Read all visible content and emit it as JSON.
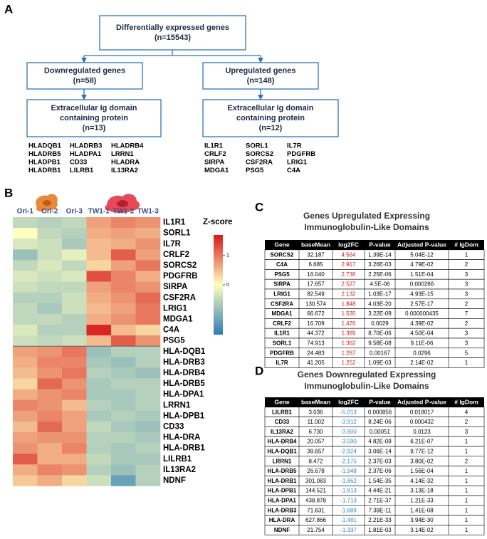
{
  "panel_a": {
    "label": "A",
    "boxes": [
      {
        "lines": [
          "Differentially expressed genes",
          "(n=15543)"
        ]
      },
      {
        "lines": [
          "Downregulated genes",
          "(n=58)"
        ]
      },
      {
        "lines": [
          "Upregulated genes",
          "(n=148)"
        ]
      },
      {
        "lines": [
          "Extracellular Ig domain",
          "containing protein",
          "(n=13)"
        ]
      },
      {
        "lines": [
          "Extracellular Ig domain",
          "containing protein",
          "(n=12)"
        ]
      }
    ],
    "down_genes": [
      [
        "HLADQB1",
        "HLADRB3",
        "HLADRB4"
      ],
      [
        "HLADRB5",
        "HLADPA1",
        "LRRN1"
      ],
      [
        "HLADPB1",
        "CD33",
        "HLADRA"
      ],
      [
        "HLADRB1",
        "LILRB1",
        "IL13RA2"
      ]
    ],
    "up_genes": [
      [
        "IL1R1",
        "SORL1",
        "IL7R"
      ],
      [
        "CRLF2",
        "SORCS2",
        "PDGFRB"
      ],
      [
        "SIRPA",
        "CSF2RA",
        "LRIG1"
      ],
      [
        "MDGA1",
        "PSG5",
        "C4A"
      ]
    ]
  },
  "panel_b": {
    "label": "B",
    "columns": [
      "Ori-1",
      "Ori-2",
      "Ori-3",
      "TW1-1",
      "TW1-2",
      "TW1-3"
    ],
    "rows": [
      "IL1R1",
      "SORL1",
      "IL7R",
      "CRLF2",
      "SORCS2",
      "PDGFRB",
      "SIRPA",
      "CSF2RA",
      "LRIG1",
      "MDGA1",
      "C4A",
      "PSG5",
      "HLA-DQB1",
      "HLA-DRB3",
      "HLA-DRB4",
      "HLA-DRB5",
      "HLA-DPA1",
      "LRRN1",
      "HLA-DPB1",
      "CD33",
      "HLA-DRA",
      "HLA-DRB1",
      "LILRB1",
      "IL13RA2",
      "NDNF"
    ],
    "values": [
      [
        -0.5,
        -0.6,
        -0.5,
        0.7,
        0.9,
        0.8
      ],
      [
        0.0,
        -0.5,
        -0.6,
        0.6,
        0.7,
        0.6
      ],
      [
        -0.3,
        -0.4,
        -0.7,
        0.5,
        0.6,
        0.8
      ],
      [
        -0.8,
        -0.4,
        -0.2,
        0.5,
        1.2,
        0.7
      ],
      [
        -0.5,
        -0.3,
        -0.5,
        0.3,
        0.7,
        1.0
      ],
      [
        -0.3,
        -0.4,
        -0.3,
        1.3,
        0.9,
        0.6
      ],
      [
        -0.4,
        -0.5,
        -0.5,
        0.7,
        0.9,
        0.8
      ],
      [
        -0.6,
        -0.6,
        -0.4,
        0.6,
        0.8,
        1.1
      ],
      [
        -0.5,
        -0.7,
        -0.4,
        0.5,
        0.7,
        1.0
      ],
      [
        -0.5,
        -0.5,
        -0.6,
        0.6,
        0.8,
        1.0
      ],
      [
        -0.3,
        -0.6,
        -0.6,
        1.6,
        0.5,
        0.3
      ],
      [
        -0.4,
        -0.5,
        -0.4,
        0.5,
        1.2,
        0.8
      ],
      [
        0.7,
        0.8,
        1.0,
        -0.8,
        -0.6,
        -0.6
      ],
      [
        0.6,
        0.9,
        0.9,
        -0.7,
        -0.8,
        -0.6
      ],
      [
        0.5,
        0.8,
        1.0,
        -0.6,
        -0.7,
        -0.8
      ],
      [
        0.3,
        1.1,
        0.8,
        -0.7,
        -0.6,
        -0.6
      ],
      [
        0.6,
        0.8,
        0.9,
        -0.7,
        -0.7,
        -0.6
      ],
      [
        0.9,
        0.8,
        0.5,
        -0.6,
        -0.7,
        -0.6
      ],
      [
        0.7,
        0.9,
        0.7,
        -0.7,
        -0.6,
        -0.7
      ],
      [
        0.5,
        1.1,
        0.7,
        -0.5,
        -0.7,
        -0.8
      ],
      [
        0.7,
        0.8,
        0.8,
        -0.6,
        -0.6,
        -0.7
      ],
      [
        0.8,
        0.6,
        0.9,
        -0.6,
        -0.7,
        -0.6
      ],
      [
        1.2,
        0.6,
        0.6,
        -0.5,
        -0.7,
        -0.7
      ],
      [
        0.6,
        0.9,
        0.8,
        -0.6,
        -0.8,
        -0.6
      ],
      [
        0.4,
        0.6,
        0.3,
        -0.4,
        -1.2,
        -0.6
      ]
    ],
    "colorbar": {
      "title": "Z-score",
      "zlim": [
        -1.7,
        1.7
      ],
      "ticks": [
        1,
        0
      ]
    }
  },
  "panel_c": {
    "label": "C",
    "title_lines": [
      "Genes Upregulated Expressing",
      "Immunoglobulin-Like Domains"
    ],
    "header": [
      "Gene",
      "baseMean",
      "log2FC",
      "P-value",
      "Adjusted P-value",
      "# IgDom"
    ],
    "rows": [
      [
        "SORCS2",
        "32.187",
        "4.564",
        "1.39E-14",
        "5.04E-12",
        "1"
      ],
      [
        "C4A",
        "6.685",
        "2.917",
        "3.26E-03",
        "4.79E-02",
        "2"
      ],
      [
        "PSG5",
        "16.040",
        "2.736",
        "2.25E-06",
        "1.51E-04",
        "3"
      ],
      [
        "SIRPA",
        "17.657",
        "2.527",
        "4.5E-06",
        "0.000266",
        "3"
      ],
      [
        "LRIG1",
        "82.549",
        "2.132",
        "1.03E-17",
        "4.93E-15",
        "3"
      ],
      [
        "CSF2RA",
        "130.574",
        "1.848",
        "4.03E-20",
        "2.57E-17",
        "2"
      ],
      [
        "MDGA1",
        "66.672",
        "1.535",
        "3.22E-09",
        "0.000000435",
        "7"
      ],
      [
        "CRLF2",
        "16.709",
        "1.476",
        "0.0029",
        "4.39E-02",
        "2"
      ],
      [
        "IL1R1",
        "44.372",
        "1.389",
        "8.70E-06",
        "4.50E-04",
        "3"
      ],
      [
        "SORL1",
        "74.913",
        "1.362",
        "9.58E-08",
        "9.11E-06",
        "3"
      ],
      [
        "PDGFRB",
        "24.483",
        "1.287",
        "0.00167",
        "0.0296",
        "5"
      ],
      [
        "IL7R",
        "41.205",
        "1.252",
        "1.09E-03",
        "2.14E-02",
        "1"
      ]
    ]
  },
  "panel_d": {
    "label": "D",
    "title_lines": [
      "Genes Downregulated Expressing",
      "Immunoglobulin-Like Domains"
    ],
    "header": [
      "Gene",
      "baseMean",
      "log2FC",
      "P-value",
      "Adjusted P-value",
      "# IgDom"
    ],
    "rows": [
      [
        "LILRB1",
        "3.036",
        "-5.013",
        "0.000856",
        "0.018017",
        "4"
      ],
      [
        "CD33",
        "11.002",
        "-3.912",
        "8.24E-06",
        "0.000432",
        "2"
      ],
      [
        "IL13RA2",
        "6.730",
        "-3.600",
        "0.00051",
        "0.0123",
        "3"
      ],
      [
        "HLA-DRB4",
        "20.057",
        "-3.590",
        "4.82E-09",
        "6.21E-07",
        "1"
      ],
      [
        "HLA-DQB1",
        "39.657",
        "-2.924",
        "3.06E-14",
        "9.77E-12",
        "1"
      ],
      [
        "LRRN1",
        "8.472",
        "-2.175",
        "2.37E-03",
        "3.80E-02",
        "2"
      ],
      [
        "HLA-DRB5",
        "26.678",
        "-1.948",
        "2.37E-06",
        "1.56E-04",
        "1"
      ],
      [
        "HLA-DRB1",
        "301.083",
        "-1.862",
        "1.54E-35",
        "4.14E-32",
        "1"
      ],
      [
        "HLA-DPB1",
        "144.521",
        "-1.813",
        "4.44E-21",
        "3.13E-18",
        "1"
      ],
      [
        "HLA-DPA1",
        "438.878",
        "-1.713",
        "2.71E-37",
        "1.21E-33",
        "1"
      ],
      [
        "HLA-DRB3",
        "71.631",
        "-1.689",
        "7.39E-11",
        "1.41E-08",
        "1"
      ],
      [
        "HLA-DRA",
        "627.866",
        "-1.481",
        "2.21E-33",
        "3.94E-30",
        "1"
      ],
      [
        "NDNF",
        "21.754",
        "-1.337",
        "1.81E-03",
        "3.14E-02",
        "1"
      ]
    ]
  }
}
